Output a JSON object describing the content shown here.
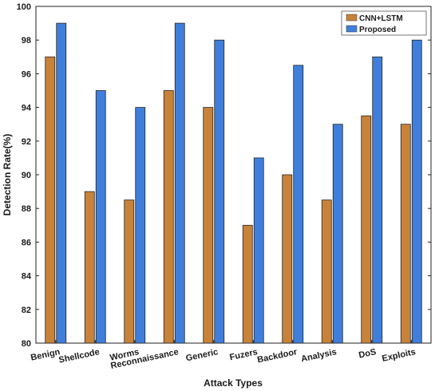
{
  "chart_data": {
    "type": "bar",
    "xlabel": "Attack Types",
    "ylabel": "Detection Rate(%)",
    "ylim": [
      80,
      100
    ],
    "yticks": [
      80,
      82,
      84,
      86,
      88,
      90,
      92,
      94,
      96,
      98,
      100
    ],
    "grid": false,
    "legend": "top-right",
    "categories": [
      "Benign",
      "Shellcode",
      "Worms",
      "Reconnaissance",
      "Generic",
      "Fuzers",
      "Backdoor",
      "Analysis",
      "DoS",
      "Exploits"
    ],
    "series": [
      {
        "name": "CNN+LSTM",
        "color": "#C8833A",
        "values": [
          97,
          89,
          88.5,
          95,
          94,
          87,
          90,
          88.5,
          93.5,
          93
        ]
      },
      {
        "name": "Proposed",
        "color": "#3F7FDB",
        "values": [
          99,
          95,
          94,
          99,
          98,
          91,
          96.5,
          93,
          97,
          98
        ]
      }
    ]
  }
}
